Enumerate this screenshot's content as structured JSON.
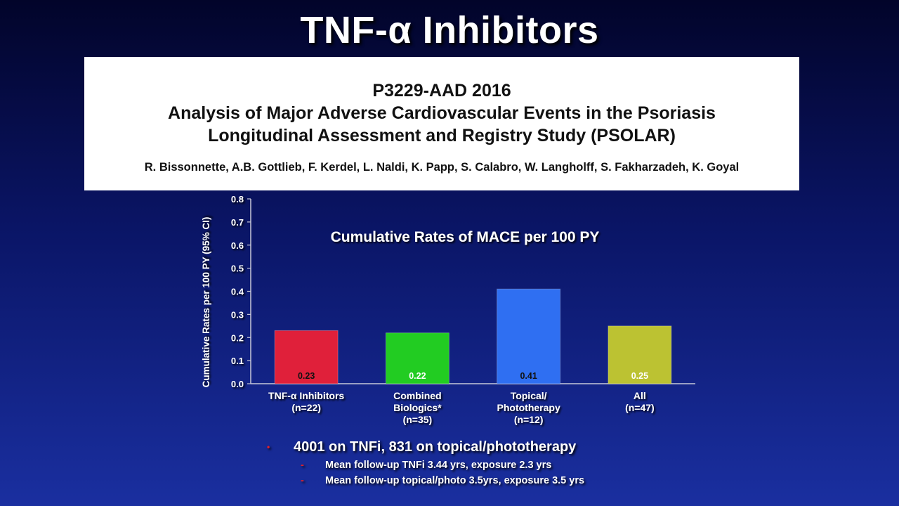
{
  "slide": {
    "title": "TNF-α Inhibitors"
  },
  "info_box": {
    "code": "P3229-AAD 2016",
    "line1": "Analysis of Major Adverse Cardiovascular Events in the Psoriasis",
    "line2": "Longitudinal Assessment and Registry Study (PSOLAR)",
    "authors": "R. Bissonnette, A.B. Gottlieb, F. Kerdel, L. Naldi, K. Papp, S. Calabro, W. Langholff, S. Fakharzadeh, K. Goyal"
  },
  "chart_data": {
    "type": "bar",
    "title": "Cumulative Rates of MACE per 100 PY",
    "ylabel": "Cumulative Rates per 100 PY (95% CI)",
    "xlabel": "",
    "ylim": [
      0,
      0.8
    ],
    "yticks": [
      "0.0",
      "0.1",
      "0.2",
      "0.3",
      "0.4",
      "0.5",
      "0.6",
      "0.7",
      "0.8"
    ],
    "categories": [
      [
        "TNF-α Inhibitors",
        "(n=22)"
      ],
      [
        "Combined",
        "Biologics*",
        "(n=35)"
      ],
      [
        "Topical/",
        "Phototherapy",
        "(n=12)"
      ],
      [
        "All",
        "(n=47)"
      ]
    ],
    "values": [
      0.23,
      0.22,
      0.41,
      0.25
    ],
    "data_labels": [
      "0.23",
      "0.22",
      "0.41",
      "0.25"
    ],
    "colors": [
      "#e0203a",
      "#22cc22",
      "#2f6ff2",
      "#bcc232"
    ],
    "label_colors": [
      "#111111",
      "#ffffff",
      "#111111",
      "#ffffff"
    ],
    "grid": false,
    "legend": "none"
  },
  "bullets": {
    "main": "4001 on TNFi,  831 on topical/phototherapy",
    "sub1": "Mean follow-up TNFi 3.44 yrs, exposure 2.3 yrs",
    "sub2": "Mean follow-up topical/photo 3.5yrs, exposure 3.5 yrs",
    "bullet_glyph": "•",
    "dash_glyph": "-"
  }
}
